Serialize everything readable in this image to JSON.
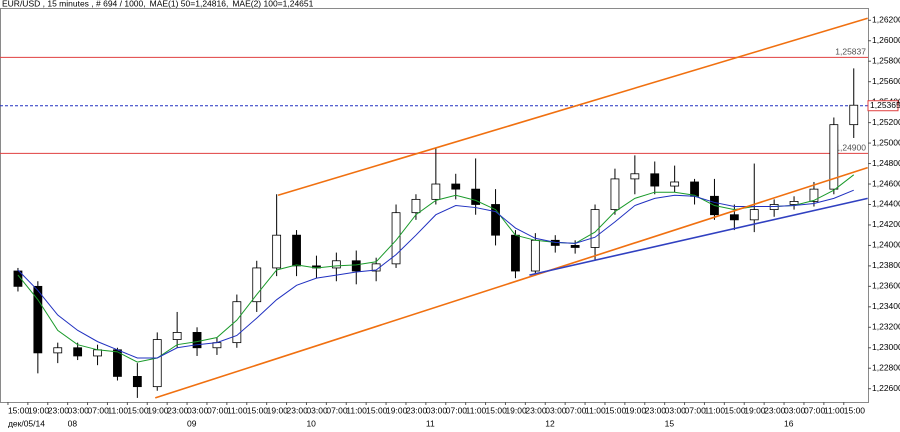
{
  "chart_data": {
    "type": "candlestick",
    "title": "EUR/USD , 15 minutes , # 694 / 1000,",
    "categories": [
      "15:00",
      "19:00",
      "23:00",
      "03:00",
      "07:00",
      "11:00",
      "15:00",
      "19:00",
      "23:00",
      "03:00",
      "07:00",
      "11:00",
      "15:00",
      "19:00",
      "23:00",
      "03:00",
      "07:00",
      "11:00",
      "15:00",
      "19:00",
      "23:00",
      "03:00",
      "07:00",
      "11:00",
      "15:00",
      "19:00",
      "23:00",
      "03:00",
      "07:00",
      "11:00",
      "15:00",
      "19:00",
      "23:00",
      "03:00",
      "07:00",
      "11:00",
      "15:00",
      "19:00",
      "23:00",
      "03:00",
      "07:00",
      "11:00",
      "15:00"
    ],
    "date_labels": [
      {
        "value": 0,
        "label": "дек/05/14"
      },
      {
        "value": 3,
        "label": "08"
      },
      {
        "value": 9,
        "label": "09"
      },
      {
        "value": 15,
        "label": "10"
      },
      {
        "value": 21,
        "label": "11"
      },
      {
        "value": 27,
        "label": "12"
      },
      {
        "value": 33,
        "label": "15"
      },
      {
        "value": 39,
        "label": "16"
      }
    ],
    "open": [
      1.2375,
      1.236,
      1.2295,
      1.23,
      1.2292,
      1.2298,
      1.2272,
      1.2262,
      1.2308,
      1.2315,
      1.23,
      1.2305,
      1.2345,
      1.2378,
      1.241,
      1.238,
      1.2378,
      1.2385,
      1.2375,
      1.2382,
      1.2432,
      1.2445,
      1.246,
      1.2455,
      1.244,
      1.241,
      1.2375,
      1.2405,
      1.24,
      1.2398,
      1.2435,
      1.2465,
      1.247,
      1.2458,
      1.2462,
      1.2448,
      1.243,
      1.2425,
      1.2435,
      1.244,
      1.2443,
      1.2455,
      1.2518
    ],
    "high": [
      1.2378,
      1.2365,
      1.2305,
      1.2305,
      1.2303,
      1.23,
      1.2285,
      1.2315,
      1.2335,
      1.232,
      1.231,
      1.2352,
      1.2385,
      1.245,
      1.2415,
      1.239,
      1.2393,
      1.2395,
      1.2388,
      1.244,
      1.245,
      1.2495,
      1.247,
      1.2485,
      1.2455,
      1.2415,
      1.2412,
      1.241,
      1.2405,
      1.244,
      1.2475,
      1.2488,
      1.2482,
      1.2478,
      1.2465,
      1.2465,
      1.244,
      1.248,
      1.2445,
      1.2448,
      1.2462,
      1.2525,
      1.2573
    ],
    "low": [
      1.2355,
      1.2275,
      1.2285,
      1.2288,
      1.2283,
      1.2268,
      1.2251,
      1.2258,
      1.23,
      1.2292,
      1.2293,
      1.23,
      1.2335,
      1.237,
      1.237,
      1.2368,
      1.2365,
      1.2362,
      1.2365,
      1.2378,
      1.2425,
      1.244,
      1.2445,
      1.243,
      1.24,
      1.2368,
      1.2372,
      1.2393,
      1.2392,
      1.2385,
      1.243,
      1.245,
      1.245,
      1.2452,
      1.244,
      1.2425,
      1.2415,
      1.2413,
      1.2428,
      1.2435,
      1.2438,
      1.245,
      1.2505
    ],
    "close": [
      1.236,
      1.2295,
      1.23,
      1.2292,
      1.2298,
      1.2272,
      1.2262,
      1.2308,
      1.2315,
      1.23,
      1.2305,
      1.2345,
      1.2378,
      1.241,
      1.238,
      1.2378,
      1.2385,
      1.2375,
      1.2382,
      1.2432,
      1.2445,
      1.246,
      1.2455,
      1.244,
      1.241,
      1.2375,
      1.2405,
      1.24,
      1.2398,
      1.2435,
      1.2465,
      1.247,
      1.2458,
      1.2462,
      1.2448,
      1.243,
      1.2425,
      1.2435,
      1.244,
      1.2443,
      1.2455,
      1.2518,
      1.2537
    ],
    "up_color": "#ffffff",
    "down_color": "#000000",
    "series": [
      {
        "name": "MAE(1) 50=1,24816,",
        "color": "#1a9a2a",
        "values": [
          1.2371,
          1.2347,
          1.2317,
          1.2303,
          1.2298,
          1.2296,
          1.2286,
          1.229,
          1.2303,
          1.2306,
          1.231,
          1.2327,
          1.2352,
          1.2376,
          1.2381,
          1.2378,
          1.238,
          1.2381,
          1.2384,
          1.2405,
          1.243,
          1.2444,
          1.2449,
          1.2444,
          1.2435,
          1.241,
          1.2405,
          1.2403,
          1.2402,
          1.2413,
          1.2433,
          1.2446,
          1.2452,
          1.2452,
          1.2449,
          1.2439,
          1.2435,
          1.2438,
          1.2438,
          1.2439,
          1.2444,
          1.2454,
          1.2469
        ]
      },
      {
        "name": "MAE(2) 100=1,24651",
        "color": "#2030c0",
        "values": [
          1.2376,
          1.2356,
          1.2332,
          1.2317,
          1.2306,
          1.2298,
          1.229,
          1.229,
          1.23,
          1.2303,
          1.2305,
          1.2312,
          1.2329,
          1.2347,
          1.2361,
          1.2368,
          1.2371,
          1.2374,
          1.2376,
          1.2391,
          1.241,
          1.243,
          1.2439,
          1.2437,
          1.2433,
          1.2417,
          1.2407,
          1.2403,
          1.2402,
          1.2408,
          1.2423,
          1.2439,
          1.2446,
          1.2449,
          1.2448,
          1.2442,
          1.2438,
          1.2438,
          1.2438,
          1.2439,
          1.2441,
          1.2446,
          1.2454
        ]
      }
    ],
    "trendlines": [
      {
        "color": "#f07010",
        "x": [
          6.9,
          42.7
        ],
        "y": [
          1.2251,
          1.2476
        ]
      },
      {
        "color": "#f07010",
        "x": [
          13.07,
          42.7
        ],
        "y": [
          1.2449,
          1.2622
        ]
      },
      {
        "color": "#3040c0",
        "x": [
          25.7,
          42.7
        ],
        "y": [
          1.2371,
          1.2446
        ]
      }
    ],
    "levels": [
      {
        "value": 1.25837,
        "label": "1,25837",
        "color": "#e04040",
        "style": "solid"
      },
      {
        "value": 1.25365,
        "label": "1,25365",
        "color": "#2030c0",
        "style": "dashed"
      },
      {
        "value": 1.249,
        "label": "1,24900",
        "color": "#e04040",
        "style": "solid"
      }
    ],
    "ylim": [
      1.2247,
      1.2632
    ],
    "yticks": [
      {
        "value": 1.226,
        "label": "1,22600"
      },
      {
        "value": 1.228,
        "label": "1,22800"
      },
      {
        "value": 1.23,
        "label": "1,23000"
      },
      {
        "value": 1.232,
        "label": "1,23200"
      },
      {
        "value": 1.234,
        "label": "1,23400"
      },
      {
        "value": 1.236,
        "label": "1,23600"
      },
      {
        "value": 1.238,
        "label": "1,23800"
      },
      {
        "value": 1.24,
        "label": "1,24000"
      },
      {
        "value": 1.242,
        "label": "1,24200"
      },
      {
        "value": 1.244,
        "label": "1,24400"
      },
      {
        "value": 1.246,
        "label": "1,24600"
      },
      {
        "value": 1.248,
        "label": "1,24800"
      },
      {
        "value": 1.25,
        "label": "1,25000"
      },
      {
        "value": 1.252,
        "label": "1,25200"
      },
      {
        "value": 1.254,
        "label": "1,25400"
      },
      {
        "value": 1.256,
        "label": "1,25600"
      },
      {
        "value": 1.258,
        "label": "1,25800"
      },
      {
        "value": 1.26,
        "label": "1,26000"
      },
      {
        "value": 1.262,
        "label": "1,26200"
      }
    ]
  }
}
